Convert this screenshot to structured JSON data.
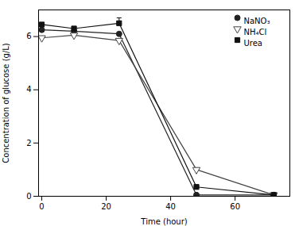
{
  "chart_data": {
    "type": "line",
    "xlabel": "Time (hour)",
    "ylabel": "Concentration of glucose (g/L)",
    "x": [
      0,
      10,
      24,
      48,
      72
    ],
    "xlim": [
      -1,
      77
    ],
    "ylim": [
      0,
      7
    ],
    "xticks": [
      0,
      20,
      40,
      60
    ],
    "yticks": [
      0,
      2,
      4,
      6
    ],
    "legend": "upper right",
    "series": [
      {
        "name": "NaNO₃",
        "color": "#222222",
        "marker": "circle",
        "line_style": "solid",
        "values": [
          6.25,
          6.2,
          6.1,
          0.05,
          0.05
        ],
        "yerr_upper": [
          0.0,
          0.0,
          0.0,
          0.0,
          0.0
        ]
      },
      {
        "name": "NH₄Cl",
        "color": "#444444",
        "marker": "triangle-down-open",
        "line_style": "solid",
        "values": [
          5.95,
          6.05,
          5.85,
          1.0,
          0.05
        ],
        "yerr_upper": [
          0.0,
          0.0,
          0.0,
          0.0,
          0.0
        ]
      },
      {
        "name": "Urea",
        "color": "#111111",
        "marker": "square",
        "line_style": "solid",
        "values": [
          6.45,
          6.3,
          6.5,
          0.35,
          0.05
        ],
        "yerr_upper": [
          0.0,
          0.0,
          0.2,
          0.0,
          0.0
        ]
      }
    ]
  }
}
